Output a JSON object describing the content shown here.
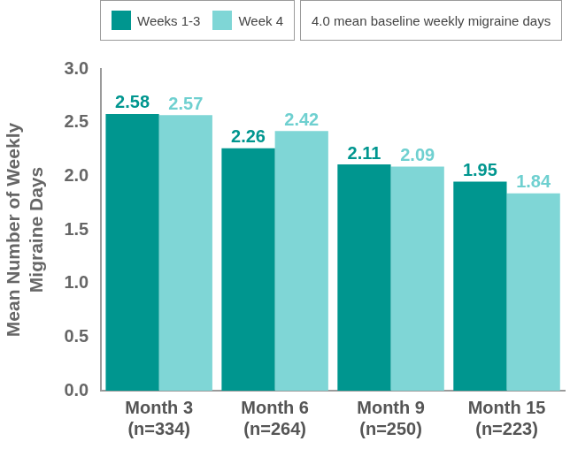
{
  "chart_data": {
    "type": "bar",
    "categories": [
      [
        "Month 3",
        "(n=334)"
      ],
      [
        "Month 6",
        "(n=264)"
      ],
      [
        "Month 9",
        "(n=250)"
      ],
      [
        "Month 15",
        "(n=223)"
      ]
    ],
    "series": [
      {
        "name": "Weeks 1-3",
        "color": "#00968f",
        "values": [
          2.58,
          2.26,
          2.11,
          1.95
        ]
      },
      {
        "name": "Week 4",
        "color": "#7fd6d6",
        "values": [
          2.57,
          2.42,
          2.09,
          1.84
        ]
      }
    ],
    "annotations": [
      "4.0 mean baseline weekly migraine days"
    ],
    "y_label": [
      "Mean Number of Weekly",
      "Migraine Days"
    ],
    "ylim": [
      0,
      3
    ],
    "yticks": [
      {
        "value": 0,
        "label": "0.0"
      },
      {
        "value": 0.5,
        "label": "0.5"
      },
      {
        "value": 1,
        "label": "1.0"
      },
      {
        "value": 1.5,
        "label": "1.5"
      },
      {
        "value": 2,
        "label": "2.0"
      },
      {
        "value": 2.5,
        "label": "2.5"
      },
      {
        "value": 3,
        "label": "3.0"
      }
    ],
    "grid": false,
    "legend": "top",
    "data_labels": true
  }
}
